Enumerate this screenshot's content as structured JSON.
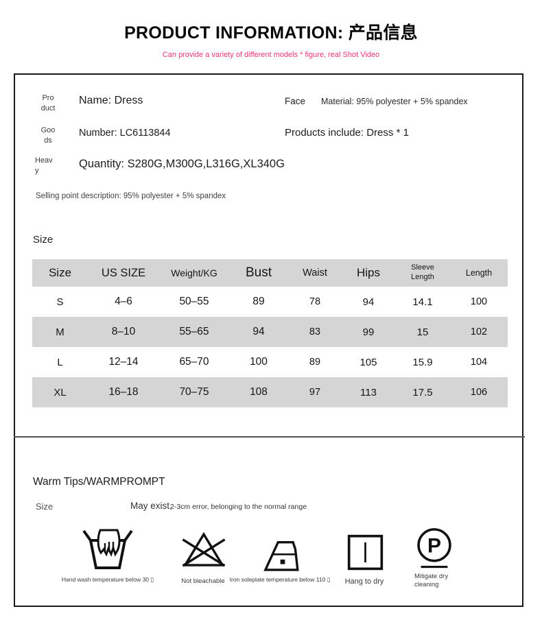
{
  "page": {
    "title": "PRODUCT INFORMATION: 产品信息",
    "subtitle": "Can provide a variety of different models * figure, real Shot Video"
  },
  "product_info": {
    "rows": [
      {
        "label": "Pro\nduct",
        "value": "Name: Dress",
        "right_label": "Face",
        "right_value": "Material: 95% polyester + 5% spandex"
      },
      {
        "label": "Goo\nds",
        "value": "Number: LC6113844",
        "right_value": "Products include: Dress * 1"
      },
      {
        "label": "Heav\ny",
        "value": "Quantity: S280G,M300G,L316G,XL340G"
      }
    ],
    "selling_point": "Selling point description: 95% polyester + 5% spandex"
  },
  "size_section": {
    "heading": "Size",
    "table": {
      "headers": [
        "Size",
        "US SIZE",
        "Weight/KG",
        "Bust",
        "Waist",
        "Hips",
        "Sleeve\nLength",
        "Length"
      ],
      "rows": [
        [
          "S",
          "4–6",
          "50–55",
          "89",
          "78",
          "94",
          "14.1",
          "100"
        ],
        [
          "M",
          "8–10",
          "55–65",
          "94",
          "83",
          "99",
          "15",
          "102"
        ],
        [
          "L",
          "12–14",
          "65–70",
          "100",
          "89",
          "105",
          "15.9",
          "104"
        ],
        [
          "XL",
          "16–18",
          "70–75",
          "108",
          "97",
          "113",
          "17.5",
          "106"
        ]
      ]
    }
  },
  "warm_tips": {
    "heading": "Warm Tips/WARMPROMPT",
    "size_label": "Size",
    "note_main": "May exist,",
    "note_detail": "2-3cm error, belonging to the normal range",
    "care_icons": [
      {
        "name": "hand-wash-icon",
        "label": "Hand wash temperature below 30 ▯"
      },
      {
        "name": "do-not-bleach-icon",
        "label": "Not bleachable"
      },
      {
        "name": "iron-low-icon",
        "label": "Iron soleplate temperature below 110 ▯"
      },
      {
        "name": "hang-to-dry-icon",
        "label": "Hang to dry"
      },
      {
        "name": "dry-clean-p-icon",
        "label": "Mitigate dry cleaning",
        "p_symbol": "P"
      }
    ]
  },
  "colors": {
    "accent_pink": "#e8336e",
    "table_band_gray": "#d5d5d5",
    "border_black": "#1a1a1a"
  }
}
